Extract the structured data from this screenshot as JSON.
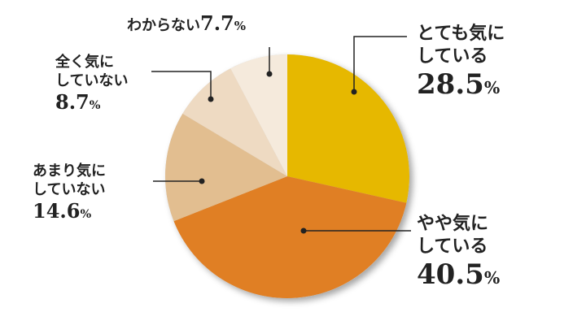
{
  "chart_data": {
    "type": "pie",
    "start": "12 o'clock",
    "direction": "clockwise",
    "slices": [
      {
        "label_lines": [
          "とても気に",
          "している"
        ],
        "value": 28.5,
        "value_text": "28.5",
        "color": "#E6B800"
      },
      {
        "label_lines": [
          "やや気に",
          "している"
        ],
        "value": 40.5,
        "value_text": "40.5",
        "color": "#E07F24"
      },
      {
        "label_lines": [
          "あまり気に",
          "していない"
        ],
        "value": 14.6,
        "value_text": "14.6",
        "color": "#E2BE90"
      },
      {
        "label_lines": [
          "全く気に",
          "していない"
        ],
        "value": 8.7,
        "value_text": "8.7",
        "color": "#EEDAC2"
      },
      {
        "label_lines": [
          "わからない"
        ],
        "value": 7.7,
        "value_text": "7.7",
        "color": "#F5EADC"
      }
    ],
    "unit": "%"
  }
}
